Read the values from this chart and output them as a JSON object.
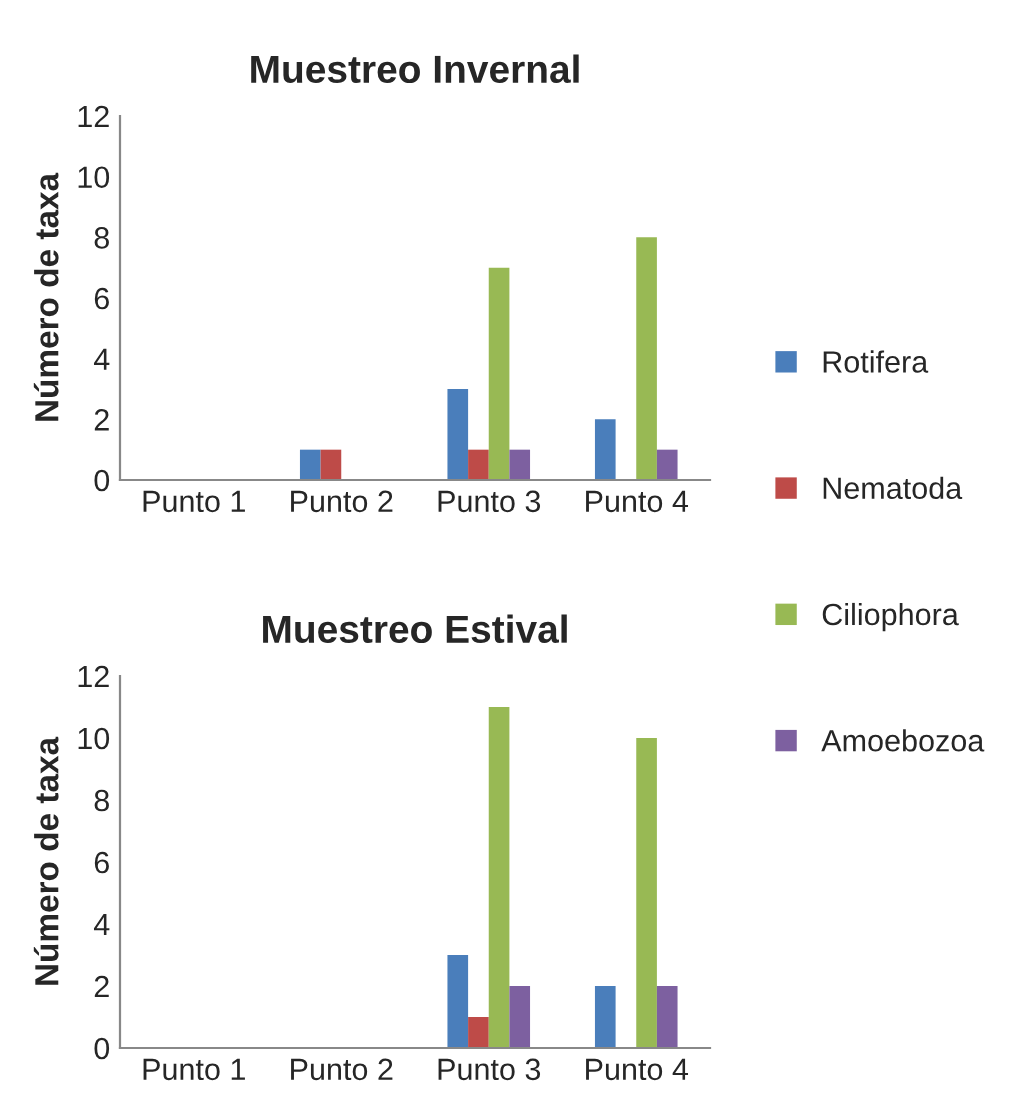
{
  "chart_data": [
    {
      "type": "bar",
      "title": "Muestreo Invernal",
      "ylabel": "Número de taxa",
      "categories": [
        "Punto 1",
        "Punto 2",
        "Punto 3",
        "Punto 4"
      ],
      "ylim": [
        0,
        12
      ],
      "yticks": [
        0,
        2,
        4,
        6,
        8,
        10,
        12
      ],
      "grid": false,
      "legend": "right",
      "series": [
        {
          "name": "Rotifera",
          "color": "#4a7ebb",
          "values": [
            0,
            1,
            3,
            2
          ]
        },
        {
          "name": "Nematoda",
          "color": "#be4b48",
          "values": [
            0,
            1,
            1,
            0
          ]
        },
        {
          "name": "Ciliophora",
          "color": "#98b954",
          "values": [
            0,
            0,
            7,
            8
          ]
        },
        {
          "name": "Amoebozoa",
          "color": "#7d60a0",
          "values": [
            0,
            0,
            1,
            1
          ]
        }
      ]
    },
    {
      "type": "bar",
      "title": "Muestreo Estival",
      "ylabel": "Número de taxa",
      "categories": [
        "Punto 1",
        "Punto 2",
        "Punto 3",
        "Punto 4"
      ],
      "ylim": [
        0,
        12
      ],
      "yticks": [
        0,
        2,
        4,
        6,
        8,
        10,
        12
      ],
      "grid": false,
      "series": [
        {
          "color": "#4a7ebb",
          "values": [
            0,
            0,
            3,
            2
          ]
        },
        {
          "color": "#be4b48",
          "values": [
            0,
            0,
            1,
            0
          ]
        },
        {
          "color": "#98b954",
          "values": [
            0,
            0,
            11,
            10
          ]
        },
        {
          "color": "#7d60a0",
          "values": [
            0,
            0,
            2,
            2
          ]
        }
      ]
    }
  ]
}
